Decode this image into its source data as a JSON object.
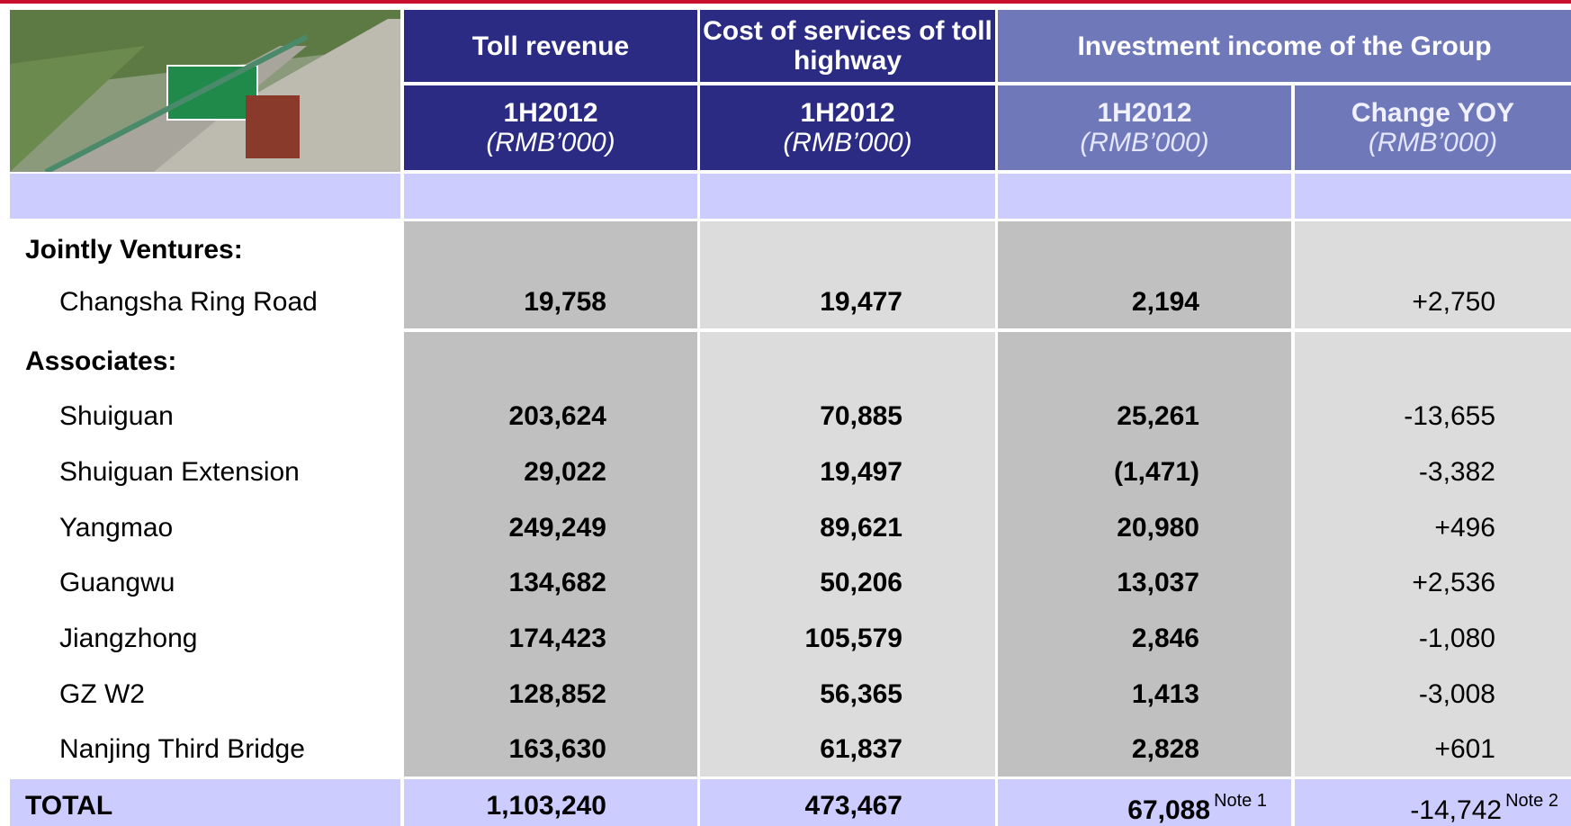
{
  "header": {
    "groups": [
      "Toll revenue",
      "Cost of services of toll highway",
      "Investment income of the Group"
    ],
    "subheaders": [
      {
        "period": "1H2012",
        "unit": "(RMB’000)"
      },
      {
        "period": "1H2012",
        "unit": "(RMB’000)"
      },
      {
        "period": "1H2012",
        "unit": "(RMB’000)"
      },
      {
        "period": "Change YOY",
        "unit": "(RMB’000)"
      }
    ]
  },
  "sections": [
    {
      "title": "Jointly Ventures:",
      "rows": [
        {
          "name": "Changsha Ring Road",
          "values": [
            "19,758",
            "19,477",
            "2,194",
            "+2,750"
          ]
        }
      ]
    },
    {
      "title": "Associates:",
      "rows": [
        {
          "name": "Shuiguan",
          "values": [
            "203,624",
            "70,885",
            "25,261",
            "-13,655"
          ]
        },
        {
          "name": "Shuiguan Extension",
          "values": [
            "29,022",
            "19,497",
            "(1,471)",
            "-3,382"
          ]
        },
        {
          "name": "Yangmao",
          "values": [
            "249,249",
            "89,621",
            "20,980",
            "+496"
          ]
        },
        {
          "name": "Guangwu",
          "values": [
            "134,682",
            "50,206",
            "13,037",
            "+2,536"
          ]
        },
        {
          "name": "Jiangzhong",
          "values": [
            "174,423",
            "105,579",
            "2,846",
            "-1,080"
          ]
        },
        {
          "name": "GZ W2",
          "values": [
            "128,852",
            "56,365",
            "1,413",
            "-3,008"
          ]
        },
        {
          "name": "Nanjing Third Bridge",
          "values": [
            "163,630",
            "61,837",
            "2,828",
            "+601"
          ]
        }
      ]
    }
  ],
  "total": {
    "label": "TOTAL",
    "values": [
      "1,103,240",
      "473,467",
      "67,088",
      "-14,742"
    ],
    "notes": [
      "Note 1",
      "Note 2"
    ]
  }
}
